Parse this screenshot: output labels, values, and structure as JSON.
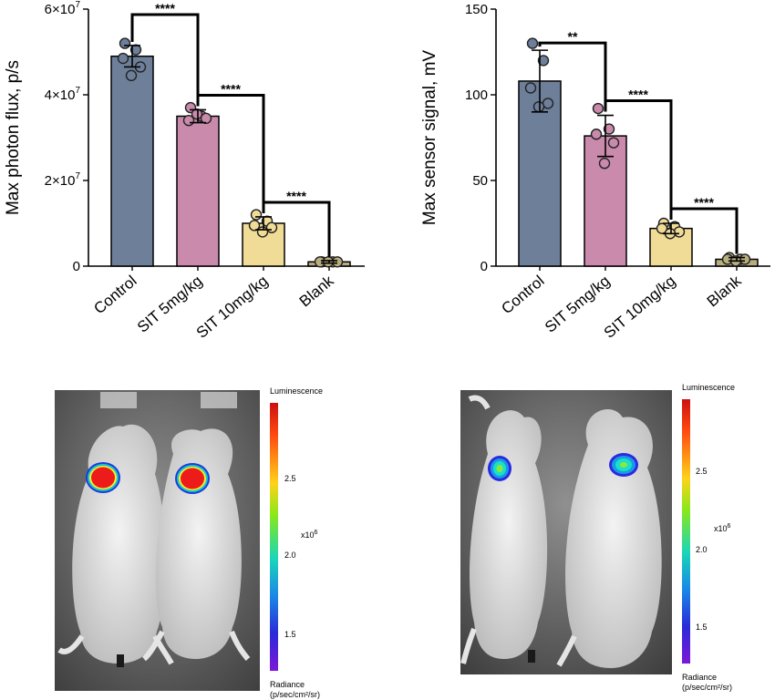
{
  "chart_data": [
    {
      "type": "bar",
      "categories": [
        "Control",
        "SIT 5mg/kg",
        "SIT 10mg/kg",
        "Blank"
      ],
      "values": [
        49000000,
        35000000,
        10000000,
        1000000
      ],
      "errors": [
        2500000,
        1500000,
        1500000,
        300000
      ],
      "points": [
        [
          52000000,
          50500000,
          48500000,
          46500000,
          44500000
        ],
        [
          37000000,
          35000000,
          34000000,
          34500000,
          35500000
        ],
        [
          12000000,
          10500000,
          9500000,
          9000000,
          8000000
        ],
        [
          1000000,
          1000000,
          1000000,
          1000000,
          1000000
        ]
      ],
      "colors": [
        "#6e7f9a",
        "#c98aac",
        "#f0dc96",
        "#b8ad7e"
      ],
      "ylabel": "Max photon flux, p/s",
      "ylim": [
        0,
        60000000
      ],
      "yticks": [
        {
          "value": 0,
          "label": "0"
        },
        {
          "value": 20000000,
          "label": "2×10",
          "exp": "7"
        },
        {
          "value": 40000000,
          "label": "4×10",
          "exp": "7"
        },
        {
          "value": 60000000,
          "label": "6×10",
          "exp": "7"
        }
      ],
      "brackets": [
        {
          "from": 0,
          "to": 1,
          "label": "****"
        },
        {
          "from": 1,
          "to": 2,
          "label": "****"
        },
        {
          "from": 2,
          "to": 3,
          "label": "****"
        }
      ]
    },
    {
      "type": "bar",
      "categories": [
        "Control",
        "SIT 5mg/kg",
        "SIT 10mg/kg",
        "Blank"
      ],
      "values": [
        108,
        76,
        22,
        4
      ],
      "errors": [
        18,
        12,
        3,
        1
      ],
      "points": [
        [
          130,
          120,
          104,
          95,
          93
        ],
        [
          92,
          80,
          77,
          72,
          60
        ],
        [
          25,
          23,
          22,
          20,
          19
        ],
        [
          5,
          4,
          4,
          4,
          3
        ]
      ],
      "colors": [
        "#6e7f9a",
        "#c98aac",
        "#f0dc96",
        "#b8ad7e"
      ],
      "ylabel": "Max sensor signal, mV",
      "ylim": [
        0,
        150
      ],
      "yticks": [
        {
          "value": 0,
          "label": "0"
        },
        {
          "value": 50,
          "label": "50"
        },
        {
          "value": 100,
          "label": "100"
        },
        {
          "value": 150,
          "label": "150"
        }
      ],
      "brackets": [
        {
          "from": 0,
          "to": 1,
          "label": "**"
        },
        {
          "from": 1,
          "to": 2,
          "label": "****"
        },
        {
          "from": 2,
          "to": 3,
          "label": "****"
        }
      ]
    }
  ],
  "images": [
    {
      "colorbar": {
        "title": "Luminescence",
        "scale_label": "x10",
        "scale_exp": "6",
        "ticks": [
          "2.5",
          "2.0",
          "1.5"
        ],
        "footer_line1": "Radiance",
        "footer_line2": "(p/sec/cm²/sr)"
      }
    },
    {
      "colorbar": {
        "title": "Luminescence",
        "scale_label": "x10",
        "scale_exp": "6",
        "ticks": [
          "2.5",
          "2.0",
          "1.5"
        ],
        "footer_line1": "Radiance",
        "footer_line2": "(p/sec/cm²/sr)"
      }
    }
  ]
}
